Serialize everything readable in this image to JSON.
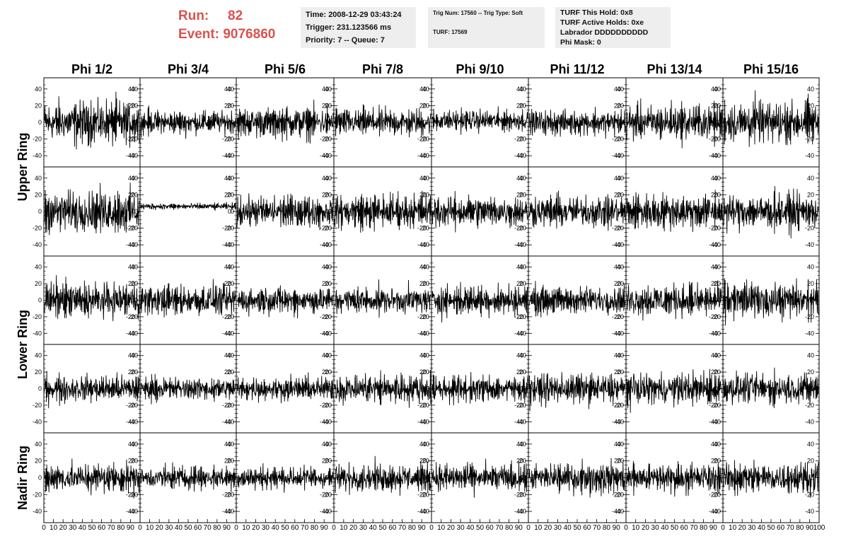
{
  "header": {
    "run_label": "Run:",
    "run_value": "82",
    "event_label": "Event:",
    "event_value": "9076860",
    "time": "Time: 2008-12-29 03:43:24",
    "trigger": "Trigger: 231.123566 ms",
    "priority": "Priority: 7 -- Queue: 7",
    "trig_num": "Trig Num: 17560 -- Trig Type: Soft",
    "turf": "TURF: 17569",
    "turf_this_hold": "TURF This Hold: 0x8",
    "turf_active_holds": "TURF Active Holds: 0xe",
    "labrador": "Labrador DDDDDDDDDD",
    "phi_mask": "Phi Mask: 0"
  },
  "chart_data": {
    "type": "line",
    "columns": [
      "Phi 1/2",
      "Phi 3/4",
      "Phi 5/6",
      "Phi 7/8",
      "Phi 9/10",
      "Phi 11/12",
      "Phi 13/14",
      "Phi 15/16"
    ],
    "rows": [
      "Upper Ring",
      "Lower Ring",
      "Nadir Ring"
    ],
    "panel_rows": 5,
    "samples_per_panel": 260,
    "xlim": [
      0,
      100
    ],
    "ylim": [
      -50,
      50
    ],
    "yticks": [
      -40,
      -20,
      0,
      20,
      40
    ],
    "xtick_labels": [
      "0",
      "10",
      "20",
      "30",
      "40",
      "50",
      "60",
      "70",
      "80",
      "90",
      "100"
    ],
    "amplitude": [
      [
        20,
        11,
        14,
        13,
        10,
        12,
        17,
        20
      ],
      [
        20,
        3,
        15,
        16,
        15,
        15,
        17,
        17
      ],
      [
        17,
        15,
        13,
        13,
        14,
        13,
        16,
        17
      ],
      [
        13,
        11,
        11,
        15,
        13,
        14,
        15,
        15
      ],
      [
        14,
        11,
        11,
        13,
        13,
        14,
        14,
        15
      ]
    ],
    "offset": [
      [
        0,
        0,
        0,
        0,
        2,
        0,
        0,
        0
      ],
      [
        0,
        6,
        0,
        0,
        0,
        0,
        0,
        0
      ],
      [
        0,
        0,
        0,
        0,
        0,
        0,
        0,
        0
      ],
      [
        0,
        0,
        0,
        0,
        0,
        0,
        0,
        0
      ],
      [
        0,
        0,
        0,
        0,
        0,
        0,
        0,
        0
      ]
    ]
  }
}
